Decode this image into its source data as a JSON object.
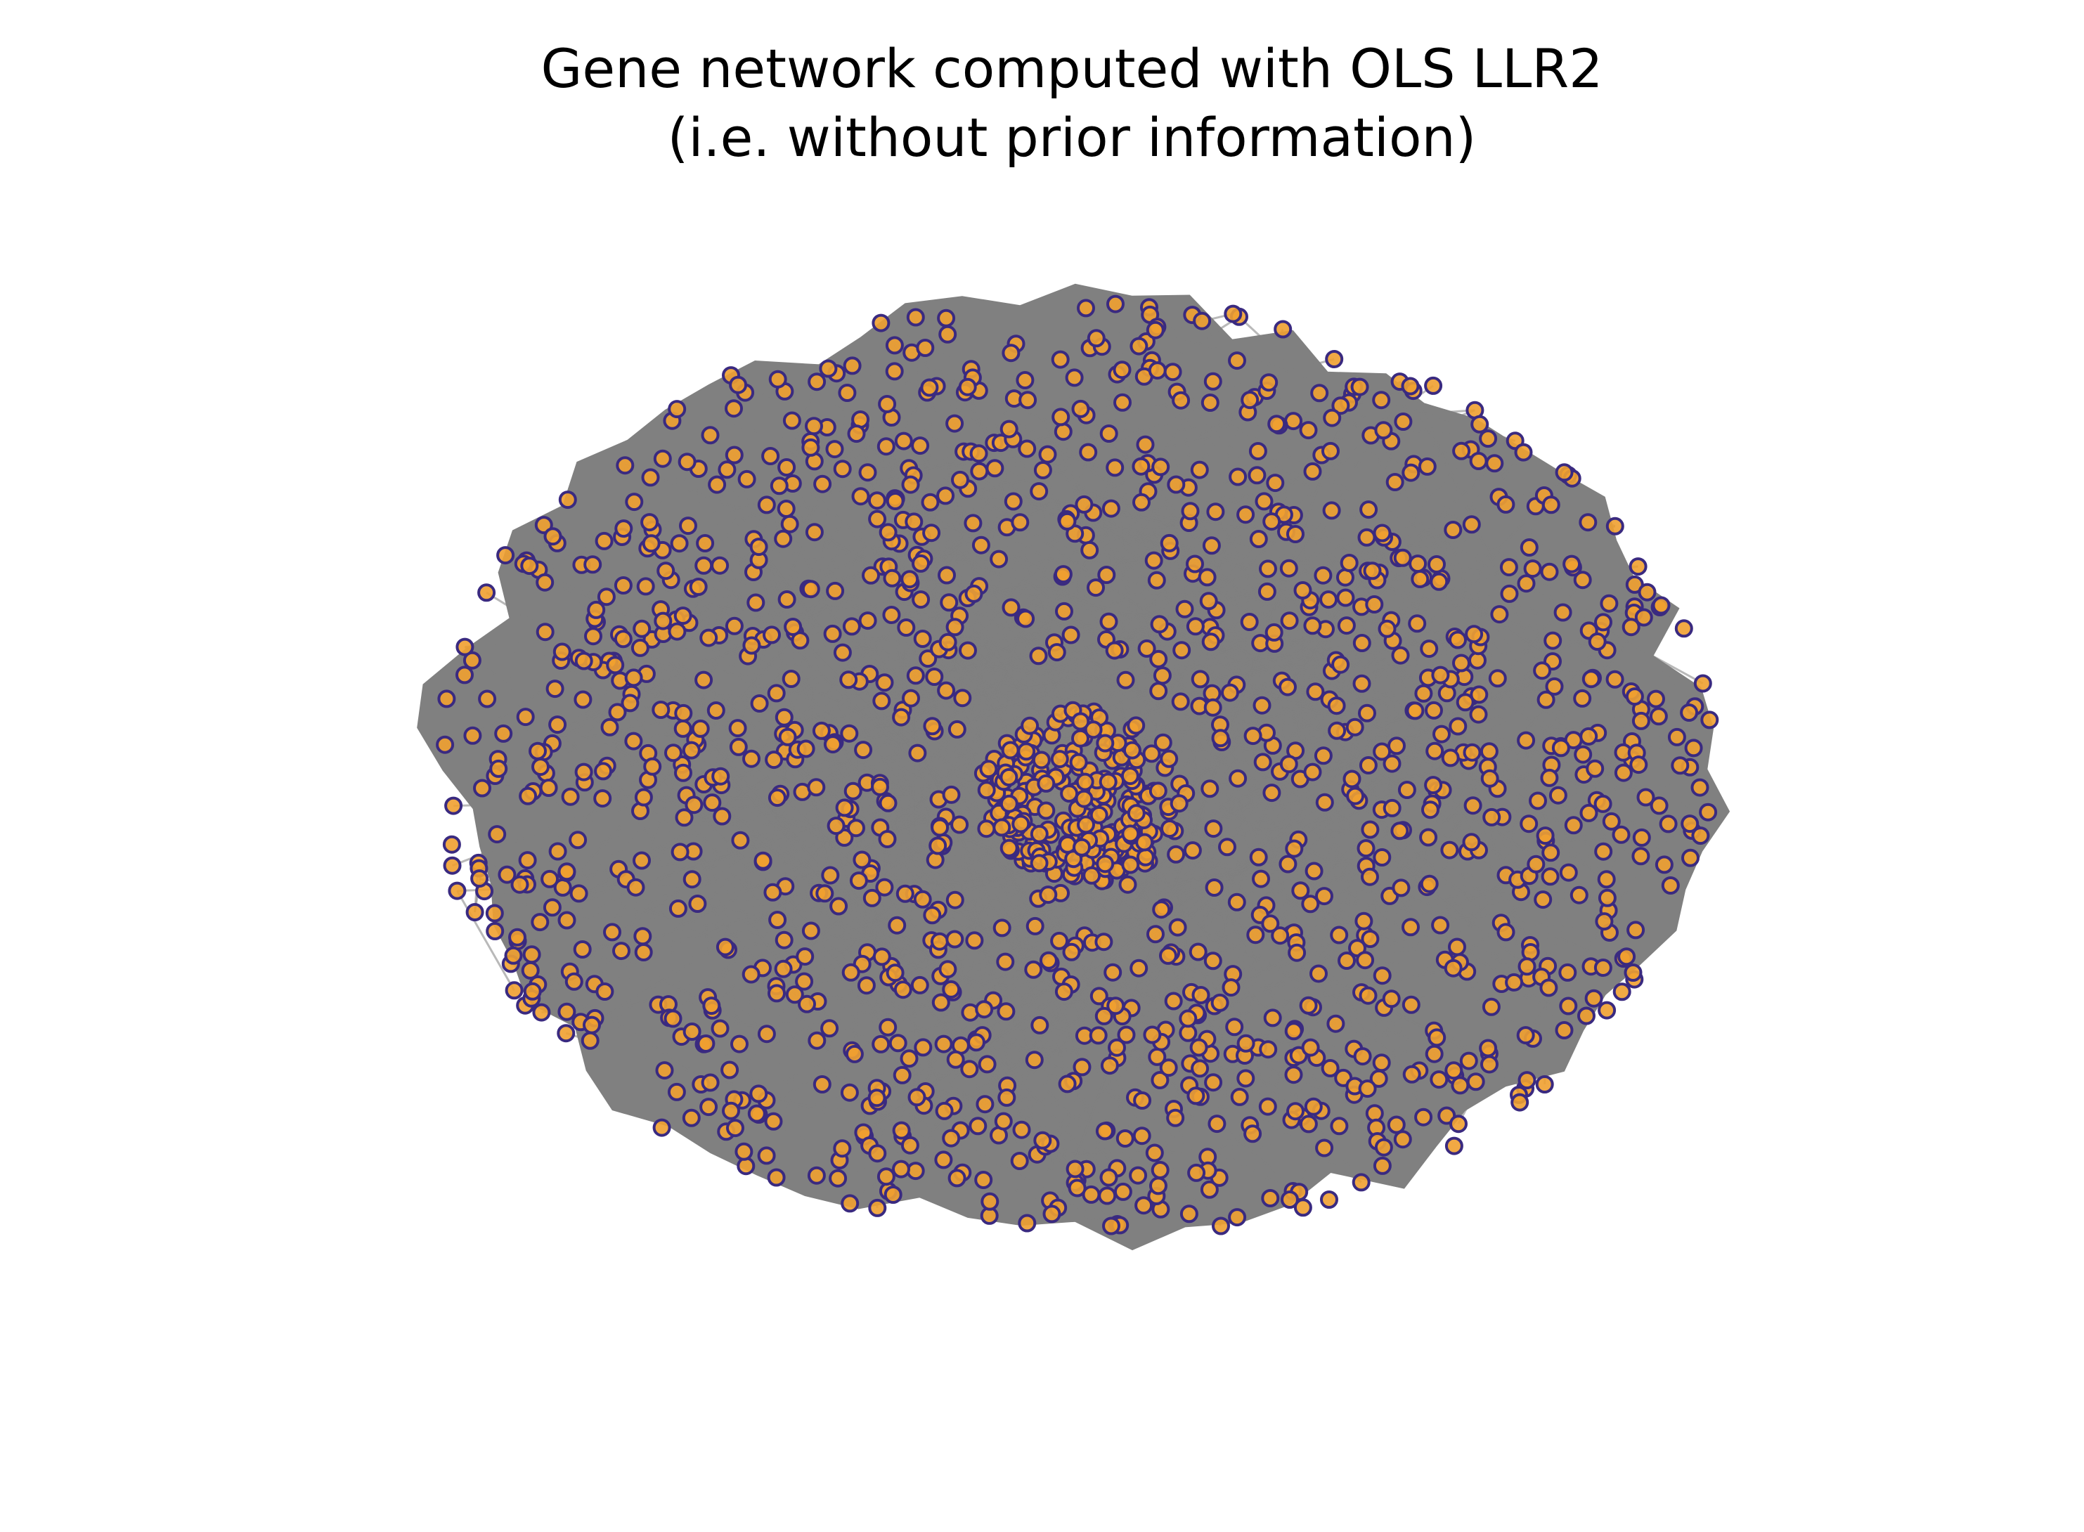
{
  "title": {
    "line1": "Gene network computed with OLS LLR2",
    "line2": "(i.e. without prior information)"
  },
  "network": {
    "node_count": 1500,
    "core_cluster_node_count": 220,
    "edge_color": "#808080",
    "node_fill": "#f0a030",
    "node_stroke": "#3a2a80",
    "background": "#ffffff"
  }
}
